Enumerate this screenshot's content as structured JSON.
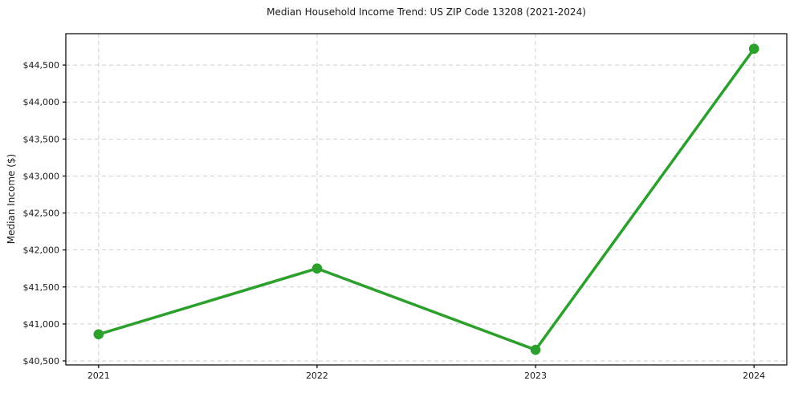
{
  "chart_data": {
    "type": "line",
    "title": "Median Household Income Trend: US ZIP Code 13208 (2021-2024)",
    "xlabel": "",
    "ylabel": "Median Income ($)",
    "x": [
      2021,
      2022,
      2023,
      2024
    ],
    "series": [
      {
        "name": "Median Household Income",
        "values": [
          40860,
          41750,
          40650,
          44720
        ]
      }
    ],
    "xlim": [
      2020.85,
      2024.15
    ],
    "ylim": [
      40446,
      44924
    ],
    "xticks": [
      2021,
      2022,
      2023,
      2024
    ],
    "xtick_labels": [
      "2021",
      "2022",
      "2023",
      "2024"
    ],
    "yticks": [
      40500,
      41000,
      41500,
      42000,
      42500,
      43000,
      43500,
      44000,
      44500
    ],
    "ytick_labels": [
      "$40,500",
      "$41,000",
      "$41,500",
      "$42,000",
      "$42,500",
      "$43,000",
      "$43,500",
      "$44,000",
      "$44,500"
    ],
    "grid": true,
    "grid_style": "dashed",
    "legend": "none",
    "marker": "circle",
    "colors": {
      "line": "#2ca02c",
      "marker": "#2ca02c",
      "grid": "#cfcfcf",
      "axis": "#000000",
      "text": "#1a1a1a",
      "background": "#ffffff"
    }
  }
}
